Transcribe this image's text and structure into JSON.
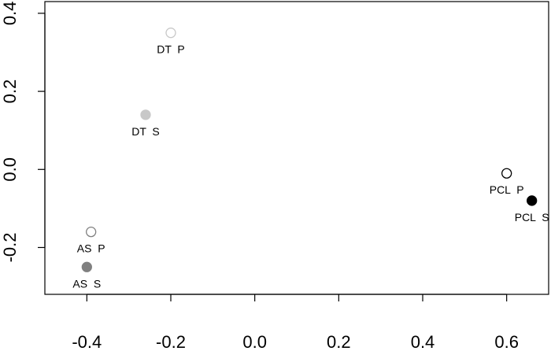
{
  "chart_data": {
    "type": "scatter",
    "title": "",
    "xlabel": "",
    "ylabel": "",
    "xlim": [
      -0.5,
      0.7
    ],
    "ylim": [
      -0.32,
      0.43
    ],
    "grid": false,
    "x_ticks": [
      -0.4,
      -0.2,
      0.0,
      0.2,
      0.4,
      0.6
    ],
    "x_tick_labels": [
      "-0.4",
      "-0.2",
      "0.0",
      "0.2",
      "0.4",
      "0.6"
    ],
    "y_ticks": [
      -0.2,
      0.0,
      0.2,
      0.4
    ],
    "y_tick_labels": [
      "-0.2",
      "0.0",
      "0.2",
      "0.4"
    ],
    "points": [
      {
        "label": "DT  P",
        "x": -0.2,
        "y": 0.35,
        "filled": false,
        "color": "#c8c8c8"
      },
      {
        "label": "DT  S",
        "x": -0.26,
        "y": 0.14,
        "filled": true,
        "color": "#c8c8c8"
      },
      {
        "label": "AS  P",
        "x": -0.39,
        "y": -0.16,
        "filled": false,
        "color": "#808080"
      },
      {
        "label": "AS  S",
        "x": -0.4,
        "y": -0.25,
        "filled": true,
        "color": "#808080"
      },
      {
        "label": "PCL  P",
        "x": 0.6,
        "y": -0.01,
        "filled": false,
        "color": "#000000"
      },
      {
        "label": "PCL  S",
        "x": 0.66,
        "y": -0.08,
        "filled": true,
        "color": "#000000"
      }
    ]
  }
}
